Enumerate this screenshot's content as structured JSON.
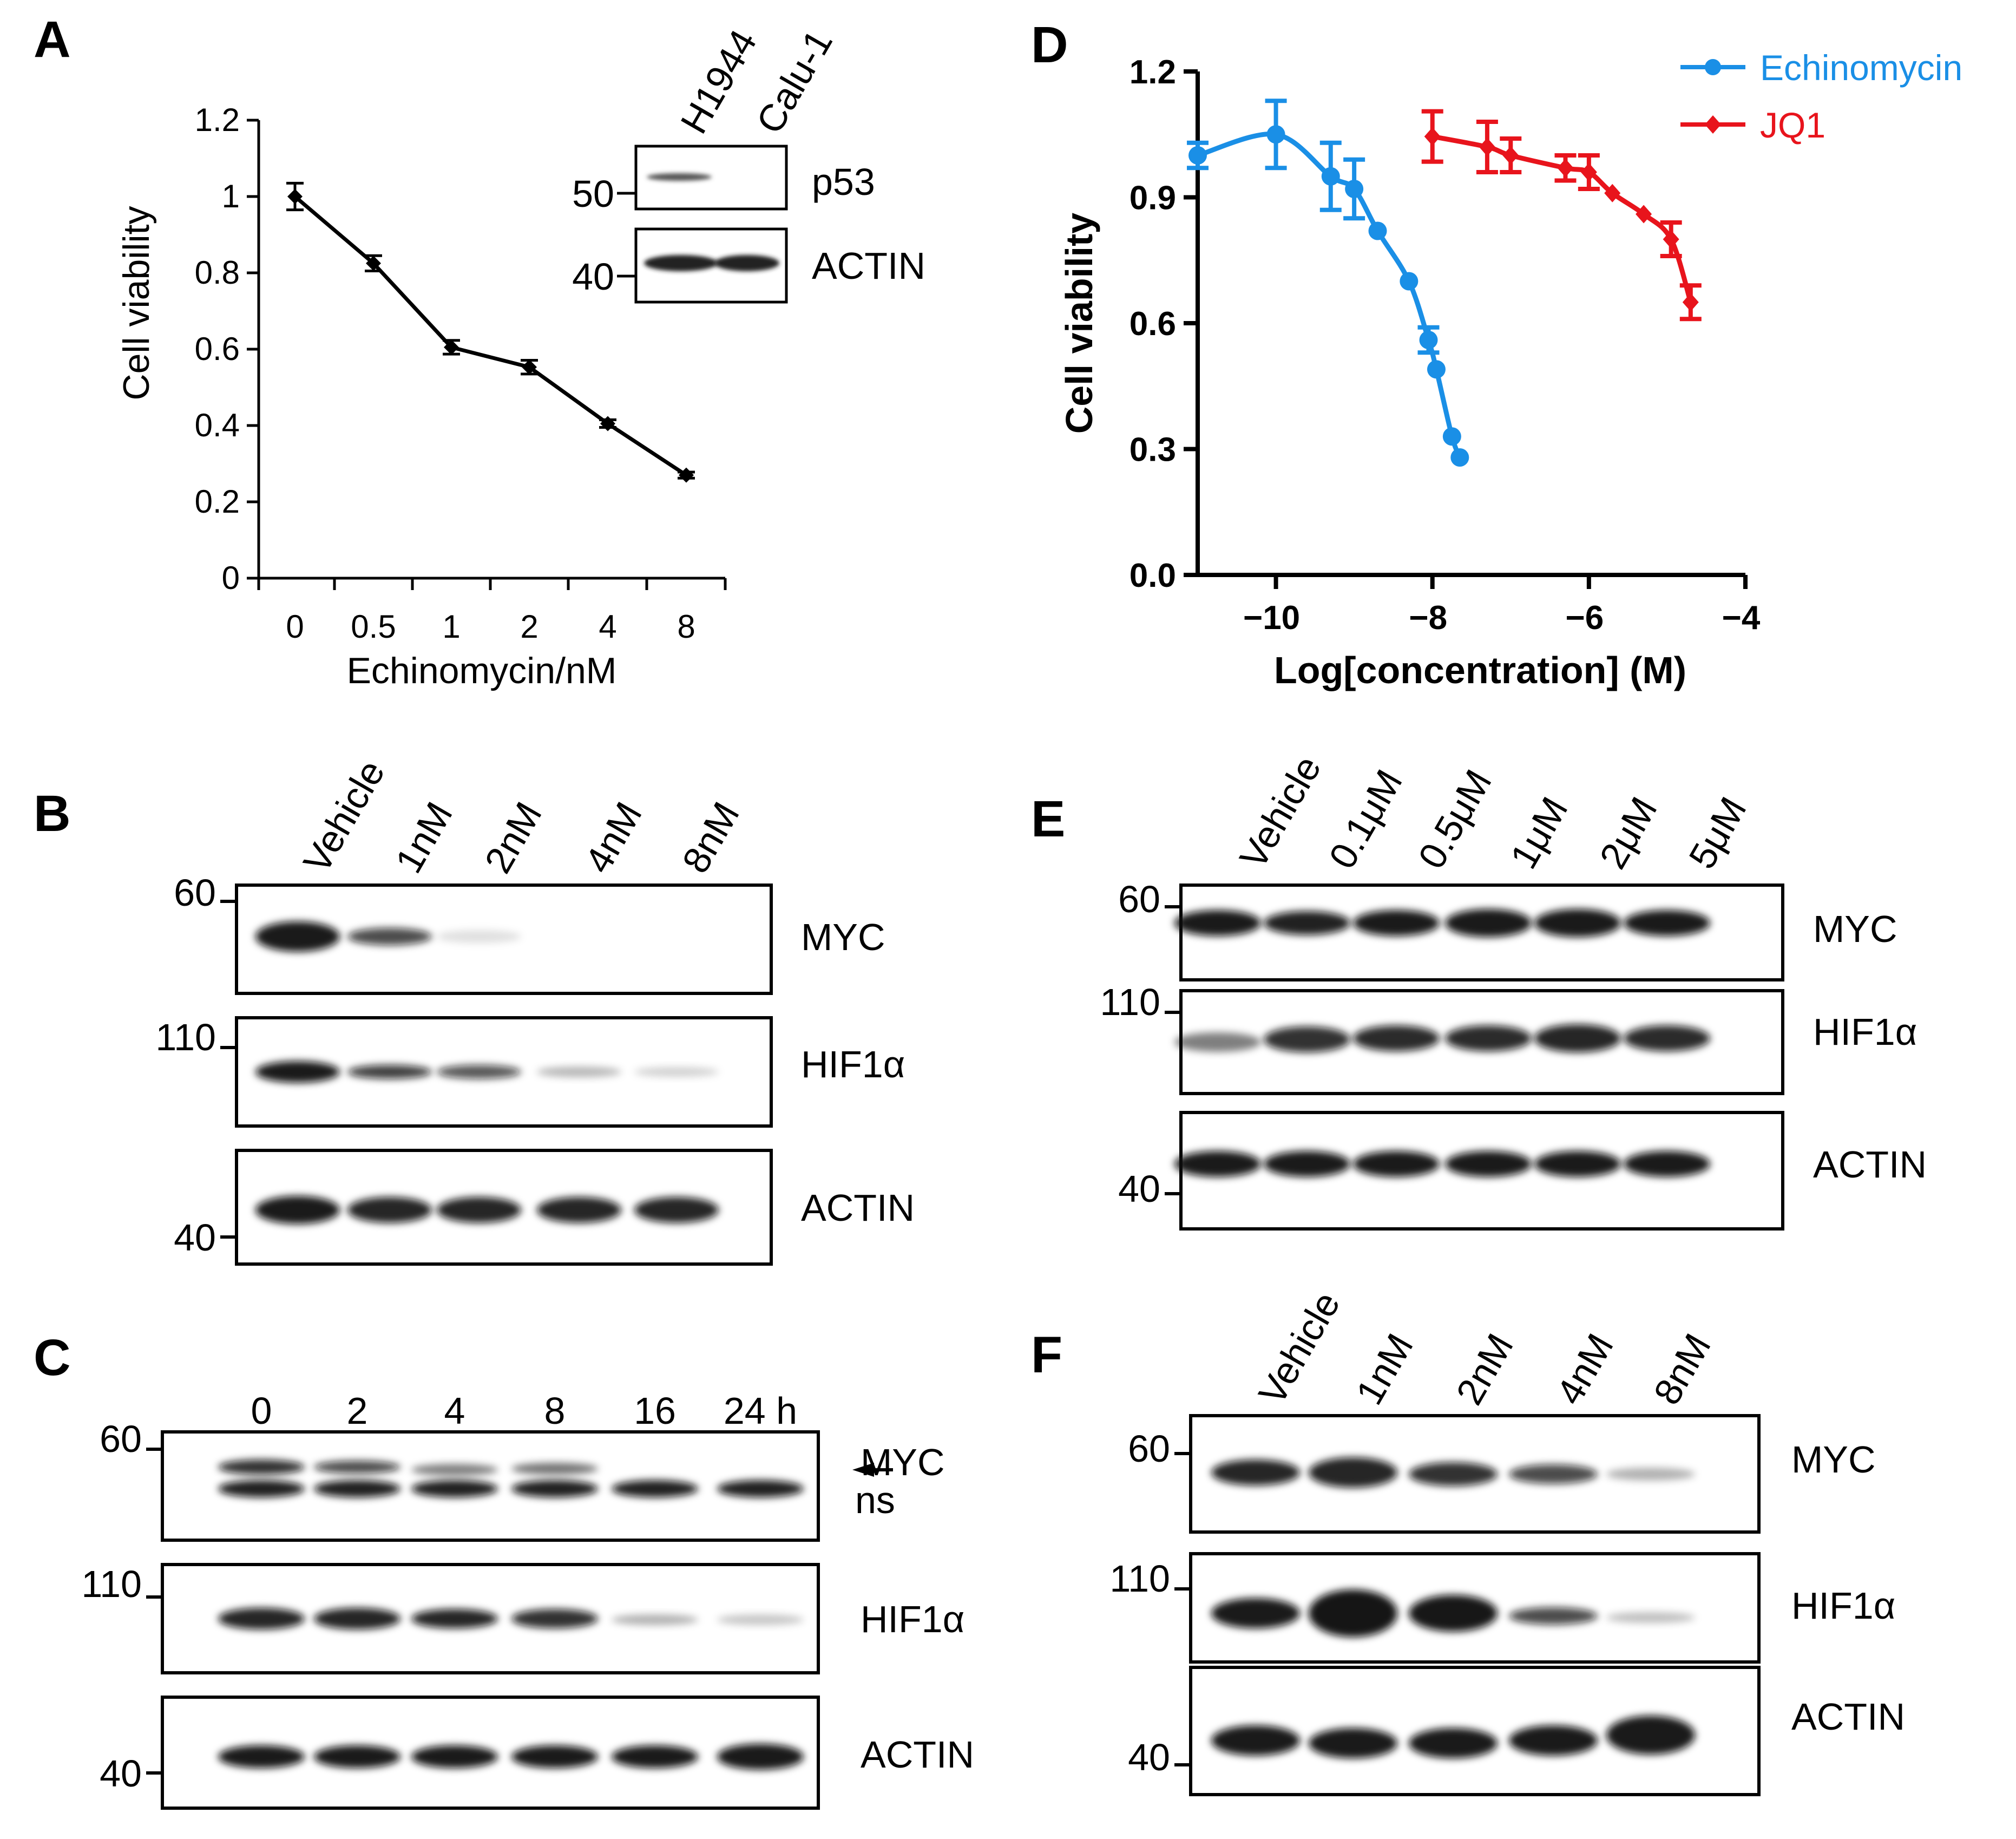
{
  "panel_labels": {
    "A": "A",
    "B": "B",
    "C": "C",
    "D": "D",
    "E": "E",
    "F": "F"
  },
  "chart_data": [
    {
      "id": "A",
      "type": "line",
      "title": "",
      "xlabel": "Echinomycin/nM",
      "ylabel": "Cell viability",
      "categories": [
        "0",
        "0.5",
        "1",
        "2",
        "4",
        "8"
      ],
      "y_ticks": [
        "0",
        "0.2",
        "0.4",
        "0.6",
        "0.8",
        "1",
        "1.2"
      ],
      "ylim": [
        0,
        1.2
      ],
      "grid": false,
      "series": [
        {
          "name": "Echinomycin",
          "color": "#000000",
          "values": [
            1.0,
            0.825,
            0.605,
            0.553,
            0.405,
            0.27
          ],
          "errors": [
            0.035,
            0.02,
            0.018,
            0.018,
            0.01,
            0.008
          ]
        }
      ]
    },
    {
      "id": "D",
      "type": "scatter",
      "title": "",
      "xlabel": "Log[concentration] (M)",
      "ylabel": "Cell viability",
      "x_ticks": [
        "−10",
        "−8",
        "−6",
        "−4"
      ],
      "y_ticks": [
        "0.0",
        "0.3",
        "0.6",
        "0.9",
        "1.2"
      ],
      "xlim": [
        -11,
        -4
      ],
      "ylim": [
        0,
        1.2
      ],
      "grid": false,
      "legend": "top-right",
      "series": [
        {
          "name": "Echinomycin",
          "color": "#1a8fe6",
          "marker": "circle",
          "x": [
            -11,
            -10,
            -9.3,
            -9,
            -8.7,
            -8.3,
            -8.05,
            -7.95,
            -7.75,
            -7.65
          ],
          "y": [
            1.0,
            1.05,
            0.95,
            0.92,
            0.82,
            0.7,
            0.56,
            0.49,
            0.33,
            0.28
          ],
          "errors": [
            0.03,
            0.08,
            0.08,
            0.07,
            0.0,
            0.0,
            0.03,
            0.0,
            0.0,
            0.0
          ]
        },
        {
          "name": "JQ1",
          "color": "#e8141c",
          "marker": "diamond",
          "x": [
            -8,
            -7.3,
            -7,
            -6.3,
            -6,
            -5.7,
            -5.3,
            -4.95,
            -4.7
          ],
          "y": [
            1.045,
            1.02,
            1.0,
            0.97,
            0.96,
            0.91,
            0.86,
            0.8,
            0.65
          ],
          "errors": [
            0.06,
            0.06,
            0.04,
            0.03,
            0.04,
            0.0,
            0.0,
            0.04,
            0.04
          ]
        }
      ]
    }
  ],
  "inset_A": {
    "lanes": [
      "H1944",
      "Calu-1"
    ],
    "rows": [
      {
        "protein": "p53",
        "mw": "50"
      },
      {
        "protein": "ACTIN",
        "mw": "40"
      }
    ]
  },
  "panel_B": {
    "lanes": [
      "Vehicle",
      "1nM",
      "2nM",
      "4nM",
      "8nM"
    ],
    "rows": [
      {
        "protein": "MYC",
        "mw": "60"
      },
      {
        "protein": "HIF1α",
        "mw": "110"
      },
      {
        "protein": "ACTIN",
        "mw": "40"
      }
    ]
  },
  "panel_C": {
    "lanes": [
      "0",
      "2",
      "4",
      "8",
      "16",
      "24 h"
    ],
    "rows": [
      {
        "protein": "MYC",
        "mw": "60",
        "extra": "ns"
      },
      {
        "protein": "HIF1α",
        "mw": "110"
      },
      {
        "protein": "ACTIN",
        "mw": "40"
      }
    ]
  },
  "panel_E": {
    "lanes": [
      "Vehicle",
      "0.1μM",
      "0.5μM",
      "1μM",
      "2μM",
      "5μM"
    ],
    "rows": [
      {
        "protein": "MYC",
        "mw": "60"
      },
      {
        "protein": "HIF1α",
        "mw": "110"
      },
      {
        "protein": "ACTIN",
        "mw": "40"
      }
    ]
  },
  "panel_F": {
    "lanes": [
      "Vehicle",
      "1nM",
      "2nM",
      "4nM",
      "8nM"
    ],
    "rows": [
      {
        "protein": "MYC",
        "mw": "60"
      },
      {
        "protein": "HIF1α",
        "mw": "110"
      },
      {
        "protein": "ACTIN",
        "mw": "40"
      }
    ]
  }
}
